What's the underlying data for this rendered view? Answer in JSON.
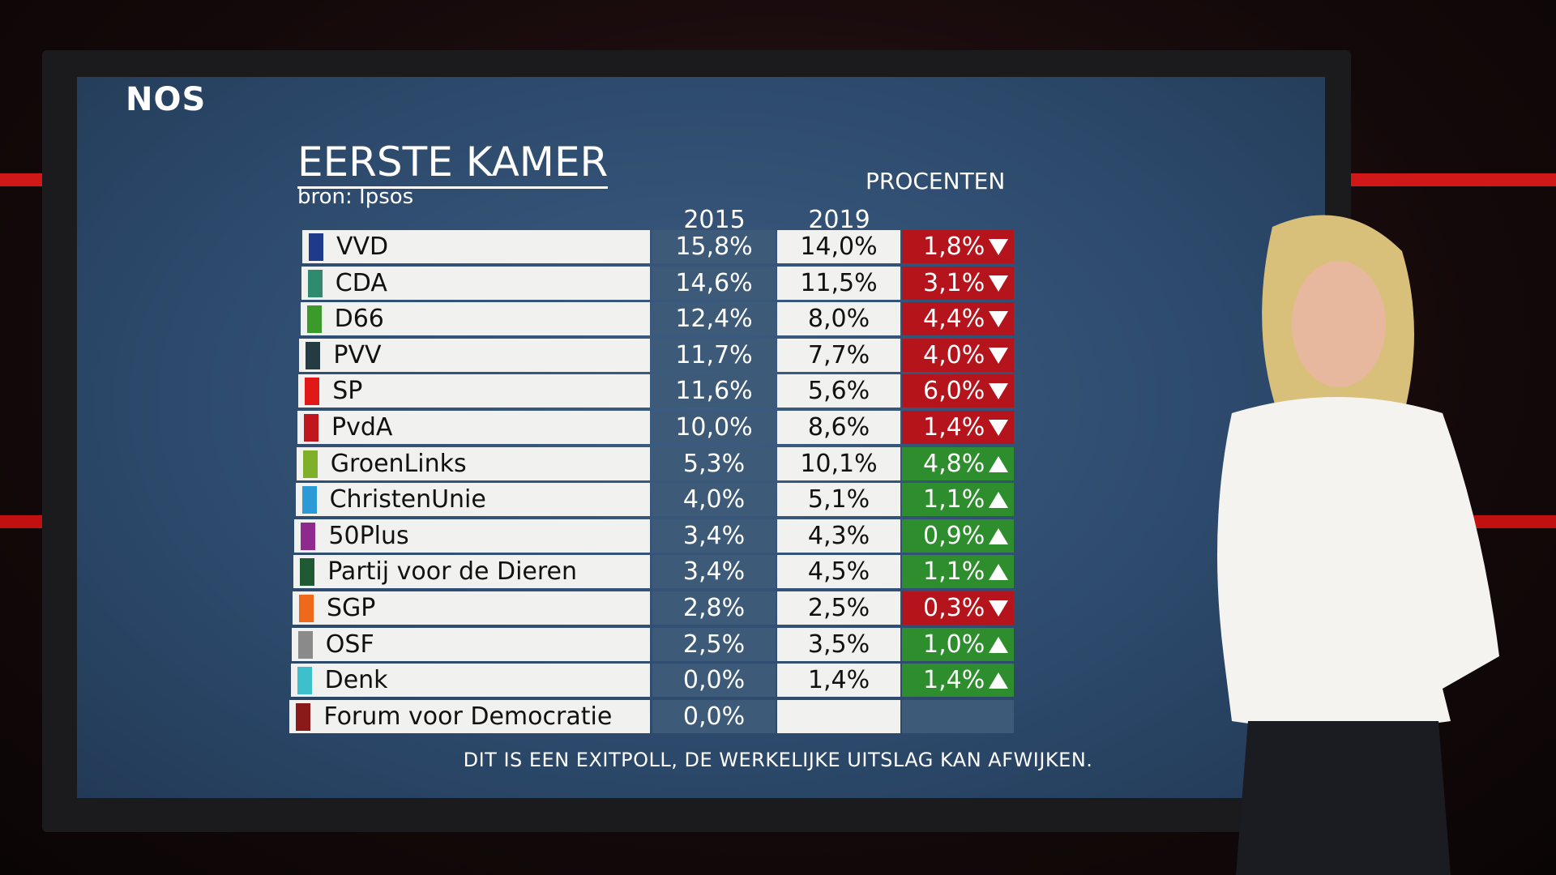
{
  "logo": "NOS",
  "header": {
    "title": "EERSTE KAMER",
    "source": "bron: Ipsos",
    "unit": "PROCENTEN"
  },
  "table": {
    "columns": [
      "2015",
      "2019"
    ],
    "rows": [
      {
        "party": "VVD",
        "color": "#1f3a8a",
        "v2015": "15,8%",
        "v2019": "14,0%",
        "change": "1,8%",
        "direction": "down"
      },
      {
        "party": "CDA",
        "color": "#2e8b6e",
        "v2015": "14,6%",
        "v2019": "11,5%",
        "change": "3,1%",
        "direction": "down"
      },
      {
        "party": "D66",
        "color": "#3a9a2a",
        "v2015": "12,4%",
        "v2019": "8,0%",
        "change": "4,4%",
        "direction": "down"
      },
      {
        "party": "PVV",
        "color": "#243b44",
        "v2015": "11,7%",
        "v2019": "7,7%",
        "change": "4,0%",
        "direction": "down"
      },
      {
        "party": "SP",
        "color": "#e01818",
        "v2015": "11,6%",
        "v2019": "5,6%",
        "change": "6,0%",
        "direction": "down"
      },
      {
        "party": "PvdA",
        "color": "#c0161e",
        "v2015": "10,0%",
        "v2019": "8,6%",
        "change": "1,4%",
        "direction": "down"
      },
      {
        "party": "GroenLinks",
        "color": "#7fb02a",
        "v2015": "5,3%",
        "v2019": "10,1%",
        "change": "4,8%",
        "direction": "up"
      },
      {
        "party": "ChristenUnie",
        "color": "#2d9ad8",
        "v2015": "4,0%",
        "v2019": "5,1%",
        "change": "1,1%",
        "direction": "up"
      },
      {
        "party": "50Plus",
        "color": "#8e2a8e",
        "v2015": "3,4%",
        "v2019": "4,3%",
        "change": "0,9%",
        "direction": "up"
      },
      {
        "party": "Partij voor de Dieren",
        "color": "#1f5a32",
        "v2015": "3,4%",
        "v2019": "4,5%",
        "change": "1,1%",
        "direction": "up"
      },
      {
        "party": "SGP",
        "color": "#ee6a1a",
        "v2015": "2,8%",
        "v2019": "2,5%",
        "change": "0,3%",
        "direction": "down"
      },
      {
        "party": "OSF",
        "color": "#8a8a8a",
        "v2015": "2,5%",
        "v2019": "3,5%",
        "change": "1,0%",
        "direction": "up"
      },
      {
        "party": "Denk",
        "color": "#3ec0cc",
        "v2015": "0,0%",
        "v2019": "1,4%",
        "change": "1,4%",
        "direction": "up"
      },
      {
        "party": "Forum voor Democratie",
        "color": "#8a1a1a",
        "v2015": "0,0%",
        "v2019": null,
        "change": null,
        "direction": null
      }
    ]
  },
  "footer": "DIT IS EEN EXITPOLL, DE WERKELIJKE UITSLAG KAN AFWIJKEN."
}
